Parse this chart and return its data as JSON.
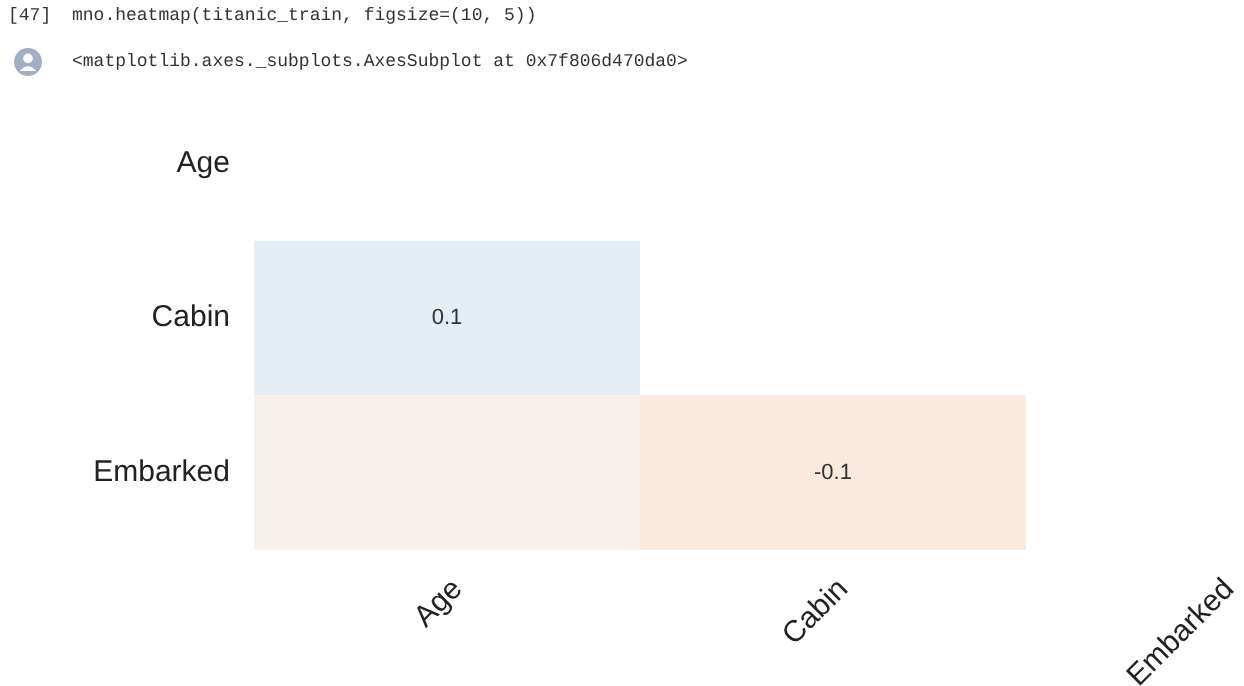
{
  "chart_data": {
    "type": "heatmap",
    "categories": [
      "Age",
      "Cabin",
      "Embarked"
    ],
    "y_categories": [
      "Age",
      "Cabin",
      "Embarked"
    ],
    "cells": [
      [
        null,
        null,
        null
      ],
      [
        0.1,
        null,
        null
      ],
      [
        null,
        -0.1,
        null
      ]
    ],
    "cell_labels": [
      [
        null,
        null,
        null
      ],
      [
        "0.1",
        null,
        null
      ],
      [
        null,
        "-0.1",
        null
      ]
    ],
    "colors": [
      [
        null,
        null,
        null
      ],
      [
        null,
        null,
        null
      ],
      [
        "#f6f0ed",
        null,
        null
      ]
    ],
    "annotations": [
      "[47]",
      "mno.heatmap(titanic_train, figsize=(10, 5))",
      "<matplotlib.axes._subplots.AxesSubplot at 0x7f806d470da0>"
    ]
  }
}
